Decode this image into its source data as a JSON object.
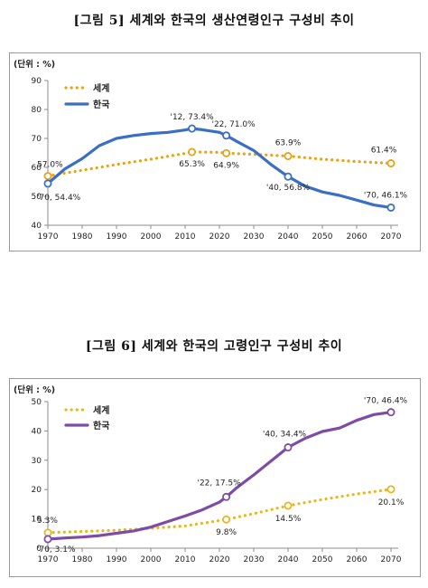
{
  "figure1": {
    "title": "[그림 5] 세계와 한국의 생산연령인구 구성비 추이",
    "unit": "(단위 : %)",
    "chart_data": {
      "type": "line",
      "ylim": [
        40,
        90
      ],
      "yticks": [
        40,
        50,
        60,
        70,
        80,
        90
      ],
      "xlim": [
        1970,
        2070
      ],
      "xticks": [
        1970,
        1980,
        1990,
        2000,
        2010,
        2020,
        2030,
        2040,
        2050,
        2060,
        2070
      ],
      "legend_position": "top-left",
      "grid": false,
      "series": [
        {
          "name": "세계",
          "color": "#E8A317",
          "style": "dotted",
          "x": [
            1970,
            1980,
            1990,
            2000,
            2010,
            2012,
            2020,
            2022,
            2030,
            2040,
            2050,
            2060,
            2070
          ],
          "y": [
            57.0,
            59.0,
            61.0,
            62.8,
            64.8,
            65.3,
            65.2,
            64.9,
            64.5,
            63.9,
            62.8,
            62.0,
            61.4
          ],
          "markers": [
            [
              1970,
              57.0
            ],
            [
              2012,
              65.3
            ],
            [
              2022,
              64.9
            ],
            [
              2040,
              63.9
            ],
            [
              2070,
              61.4
            ]
          ]
        },
        {
          "name": "한국",
          "color": "#3A6FC4",
          "style": "solid",
          "x": [
            1970,
            1975,
            1980,
            1985,
            1990,
            1995,
            2000,
            2005,
            2010,
            2012,
            2015,
            2020,
            2022,
            2025,
            2030,
            2035,
            2040,
            2045,
            2050,
            2055,
            2060,
            2065,
            2070
          ],
          "y": [
            54.4,
            59.5,
            63.0,
            67.5,
            70.0,
            71.0,
            71.7,
            72.1,
            72.9,
            73.4,
            73.0,
            72.1,
            71.0,
            69.0,
            65.8,
            61.0,
            56.8,
            53.5,
            51.5,
            50.3,
            48.7,
            47.0,
            46.1
          ],
          "markers": [
            [
              1970,
              54.4
            ],
            [
              2012,
              73.4
            ],
            [
              2022,
              71.0
            ],
            [
              2040,
              56.8
            ],
            [
              2070,
              46.1
            ]
          ]
        }
      ],
      "annotations": [
        {
          "text": "57.0%",
          "x": 1970,
          "y": 57.0
        },
        {
          "text": "'70, 54.4%",
          "x": 1970,
          "y": 54.4
        },
        {
          "text": "'12, 73.4%",
          "x": 2012,
          "y": 73.4
        },
        {
          "text": "65.3%",
          "x": 2012,
          "y": 65.3
        },
        {
          "text": "'22, 71.0%",
          "x": 2022,
          "y": 71.0
        },
        {
          "text": "64.9%",
          "x": 2022,
          "y": 64.9
        },
        {
          "text": "63.9%",
          "x": 2040,
          "y": 63.9
        },
        {
          "text": "'40, 56.8%",
          "x": 2040,
          "y": 56.8
        },
        {
          "text": "61.4%",
          "x": 2070,
          "y": 61.4
        },
        {
          "text": "'70, 46.1%",
          "x": 2070,
          "y": 46.1
        }
      ]
    }
  },
  "figure2": {
    "title": "[그림 6] 세계와 한국의 고령인구 구성비 추이",
    "unit": "(단위 : %)",
    "chart_data": {
      "type": "line",
      "ylim": [
        0,
        50
      ],
      "yticks": [
        0,
        10,
        20,
        30,
        40,
        50
      ],
      "xlim": [
        1970,
        2070
      ],
      "xticks": [
        1970,
        1980,
        1990,
        2000,
        2010,
        2020,
        2030,
        2040,
        2050,
        2060,
        2070
      ],
      "legend_position": "top-left",
      "grid": false,
      "series": [
        {
          "name": "세계",
          "color": "#E8B720",
          "style": "dotted",
          "x": [
            1970,
            1980,
            1990,
            2000,
            2010,
            2022,
            2030,
            2040,
            2050,
            2060,
            2070
          ],
          "y": [
            5.3,
            5.7,
            6.1,
            6.8,
            7.6,
            9.8,
            11.8,
            14.5,
            16.6,
            18.5,
            20.1
          ],
          "markers": [
            [
              1970,
              5.3
            ],
            [
              2022,
              9.8
            ],
            [
              2040,
              14.5
            ],
            [
              2070,
              20.1
            ]
          ]
        },
        {
          "name": "한국",
          "color": "#7D4CA6",
          "style": "solid",
          "x": [
            1970,
            1975,
            1980,
            1985,
            1990,
            1995,
            2000,
            2005,
            2010,
            2015,
            2020,
            2022,
            2025,
            2030,
            2035,
            2040,
            2045,
            2050,
            2055,
            2060,
            2065,
            2070
          ],
          "y": [
            3.1,
            3.5,
            3.8,
            4.3,
            5.1,
            5.9,
            7.2,
            9.1,
            11.0,
            13.1,
            15.7,
            17.5,
            20.6,
            25.0,
            29.7,
            34.4,
            37.5,
            39.8,
            41.0,
            43.6,
            45.6,
            46.4
          ],
          "markers": [
            [
              1970,
              3.1
            ],
            [
              2022,
              17.5
            ],
            [
              2040,
              34.4
            ],
            [
              2070,
              46.4
            ]
          ]
        }
      ],
      "annotations": [
        {
          "text": "5.3%",
          "x": 1970,
          "y": 5.3
        },
        {
          "text": "'70, 3.1%",
          "x": 1970,
          "y": 3.1
        },
        {
          "text": "'22, 17.5%",
          "x": 2022,
          "y": 17.5
        },
        {
          "text": "9.8%",
          "x": 2022,
          "y": 9.8
        },
        {
          "text": "'40, 34.4%",
          "x": 2040,
          "y": 34.4
        },
        {
          "text": "14.5%",
          "x": 2040,
          "y": 14.5
        },
        {
          "text": "'70, 46.4%",
          "x": 2070,
          "y": 46.4
        },
        {
          "text": "20.1%",
          "x": 2070,
          "y": 20.1
        }
      ]
    }
  }
}
